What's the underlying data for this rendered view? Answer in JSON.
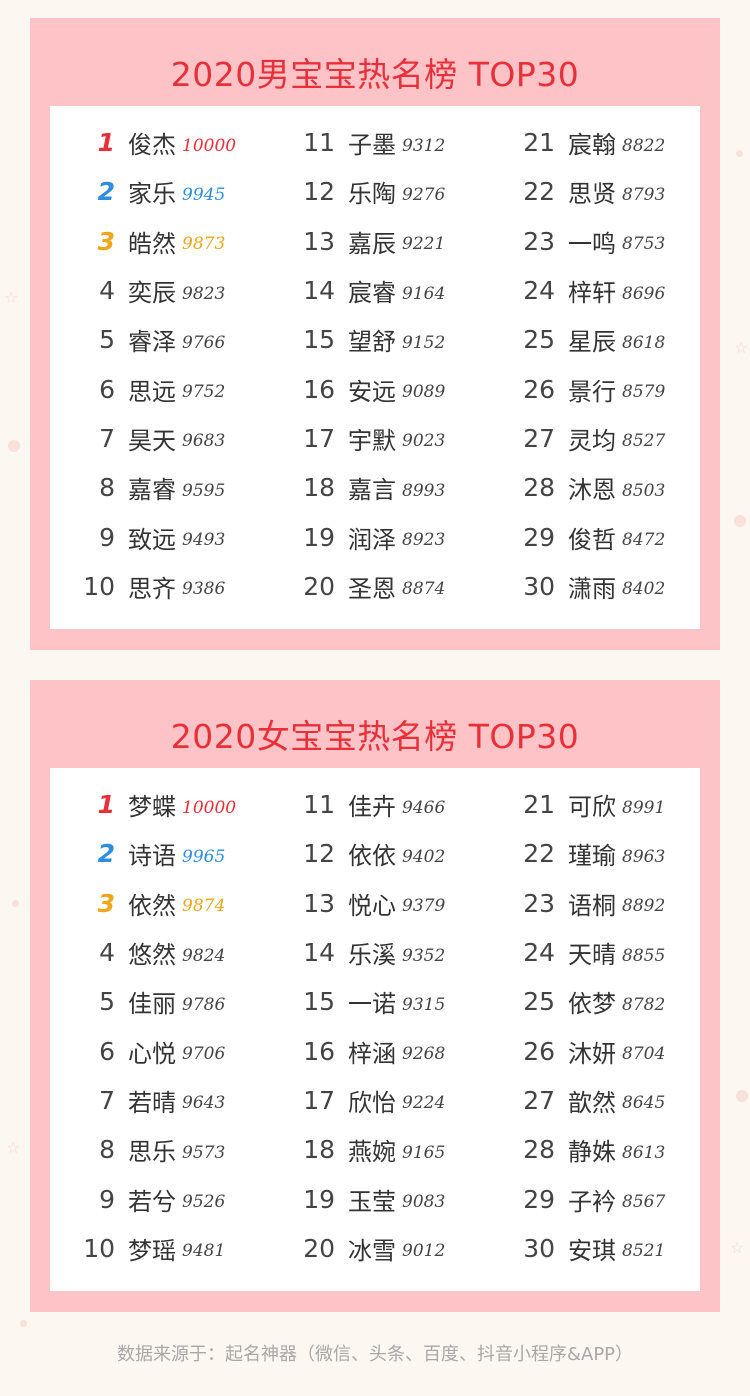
{
  "colors": {
    "panel_bg": "#fdc3c7",
    "title": "#e8303a",
    "rank1": "#e8303a",
    "rank2": "#2d8de0",
    "rank3": "#f0a51c",
    "text": "#333333",
    "source": "#a8a8a8"
  },
  "boys": {
    "title": "2020男宝宝热名榜  TOP30",
    "entries": [
      {
        "rank": "1",
        "name": "俊杰",
        "score": "10000"
      },
      {
        "rank": "2",
        "name": "家乐",
        "score": "9945"
      },
      {
        "rank": "3",
        "name": "皓然",
        "score": "9873"
      },
      {
        "rank": "4",
        "name": "奕辰",
        "score": "9823"
      },
      {
        "rank": "5",
        "name": "睿泽",
        "score": "9766"
      },
      {
        "rank": "6",
        "name": "思远",
        "score": "9752"
      },
      {
        "rank": "7",
        "name": "昊天",
        "score": "9683"
      },
      {
        "rank": "8",
        "name": "嘉睿",
        "score": "9595"
      },
      {
        "rank": "9",
        "name": "致远",
        "score": "9493"
      },
      {
        "rank": "10",
        "name": "思齐",
        "score": "9386"
      },
      {
        "rank": "11",
        "name": "子墨",
        "score": "9312"
      },
      {
        "rank": "12",
        "name": "乐陶",
        "score": "9276"
      },
      {
        "rank": "13",
        "name": "嘉辰",
        "score": "9221"
      },
      {
        "rank": "14",
        "name": "宸睿",
        "score": "9164"
      },
      {
        "rank": "15",
        "name": "望舒",
        "score": "9152"
      },
      {
        "rank": "16",
        "name": "安远",
        "score": "9089"
      },
      {
        "rank": "17",
        "name": "宇默",
        "score": "9023"
      },
      {
        "rank": "18",
        "name": "嘉言",
        "score": "8993"
      },
      {
        "rank": "19",
        "name": "润泽",
        "score": "8923"
      },
      {
        "rank": "20",
        "name": "圣恩",
        "score": "8874"
      },
      {
        "rank": "21",
        "name": "宸翰",
        "score": "8822"
      },
      {
        "rank": "22",
        "name": "思贤",
        "score": "8793"
      },
      {
        "rank": "23",
        "name": "一鸣",
        "score": "8753"
      },
      {
        "rank": "24",
        "name": "梓轩",
        "score": "8696"
      },
      {
        "rank": "25",
        "name": "星辰",
        "score": "8618"
      },
      {
        "rank": "26",
        "name": "景行",
        "score": "8579"
      },
      {
        "rank": "27",
        "name": "灵均",
        "score": "8527"
      },
      {
        "rank": "28",
        "name": "沐恩",
        "score": "8503"
      },
      {
        "rank": "29",
        "name": "俊哲",
        "score": "8472"
      },
      {
        "rank": "30",
        "name": "潇雨",
        "score": "8402"
      }
    ]
  },
  "girls": {
    "title": "2020女宝宝热名榜  TOP30",
    "entries": [
      {
        "rank": "1",
        "name": "梦蝶",
        "score": "10000"
      },
      {
        "rank": "2",
        "name": "诗语",
        "score": "9965"
      },
      {
        "rank": "3",
        "name": "依然",
        "score": "9874"
      },
      {
        "rank": "4",
        "name": "悠然",
        "score": "9824"
      },
      {
        "rank": "5",
        "name": "佳丽",
        "score": "9786"
      },
      {
        "rank": "6",
        "name": "心悦",
        "score": "9706"
      },
      {
        "rank": "7",
        "name": "若晴",
        "score": "9643"
      },
      {
        "rank": "8",
        "name": "思乐",
        "score": "9573"
      },
      {
        "rank": "9",
        "name": "若兮",
        "score": "9526"
      },
      {
        "rank": "10",
        "name": "梦瑶",
        "score": "9481"
      },
      {
        "rank": "11",
        "name": "佳卉",
        "score": "9466"
      },
      {
        "rank": "12",
        "name": "依依",
        "score": "9402"
      },
      {
        "rank": "13",
        "name": "悦心",
        "score": "9379"
      },
      {
        "rank": "14",
        "name": "乐溪",
        "score": "9352"
      },
      {
        "rank": "15",
        "name": "一诺",
        "score": "9315"
      },
      {
        "rank": "16",
        "name": "梓涵",
        "score": "9268"
      },
      {
        "rank": "17",
        "name": "欣怡",
        "score": "9224"
      },
      {
        "rank": "18",
        "name": "燕婉",
        "score": "9165"
      },
      {
        "rank": "19",
        "name": "玉莹",
        "score": "9083"
      },
      {
        "rank": "20",
        "name": "冰雪",
        "score": "9012"
      },
      {
        "rank": "21",
        "name": "可欣",
        "score": "8991"
      },
      {
        "rank": "22",
        "name": "瑾瑜",
        "score": "8963"
      },
      {
        "rank": "23",
        "name": "语桐",
        "score": "8892"
      },
      {
        "rank": "24",
        "name": "天晴",
        "score": "8855"
      },
      {
        "rank": "25",
        "name": "依梦",
        "score": "8782"
      },
      {
        "rank": "26",
        "name": "沐妍",
        "score": "8704"
      },
      {
        "rank": "27",
        "name": "歆然",
        "score": "8645"
      },
      {
        "rank": "28",
        "name": "静姝",
        "score": "8613"
      },
      {
        "rank": "29",
        "name": "子衿",
        "score": "8567"
      },
      {
        "rank": "30",
        "name": "安琪",
        "score": "8521"
      }
    ]
  },
  "footer": {
    "source": "数据来源于：起名神器（微信、头条、百度、抖音小程序&APP）"
  }
}
